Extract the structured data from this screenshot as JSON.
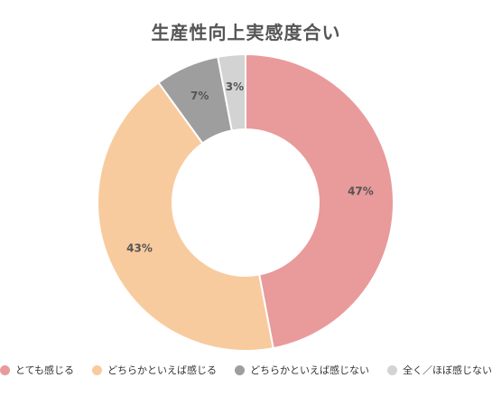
{
  "chart_data": {
    "type": "pie",
    "title": "生産性向上実感度合い",
    "categories": [
      "とても感じる",
      "どちらかといえば感じる",
      "どちらかといえば感じない",
      "全く／ほぼ感じない"
    ],
    "values": [
      47,
      43,
      7,
      3
    ],
    "labels": [
      "47%",
      "43%",
      "7%",
      "3%"
    ],
    "colors": [
      "#e99a9b",
      "#f8cb9f",
      "#9e9e9e",
      "#d3d3d3"
    ],
    "donut": true,
    "legend_position": "bottom"
  }
}
